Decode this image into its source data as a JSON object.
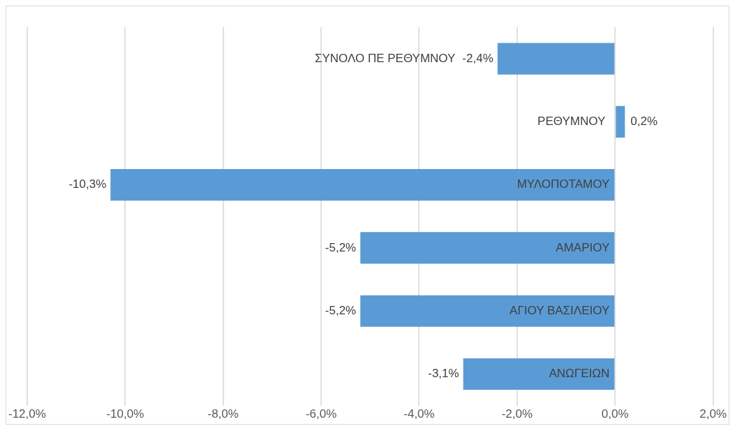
{
  "chart_data": {
    "type": "bar",
    "orientation": "horizontal",
    "categories": [
      "ΣΥΝΟΛΟ ΠΕ ΡΕΘΥΜΝΟΥ",
      "ΡΕΘΥΜΝΟΥ",
      "ΜΥΛΟΠΟΤΑΜΟΥ",
      "ΑΜΑΡΙΟΥ",
      "ΑΓΙΟΥ ΒΑΣΙΛΕΙΟΥ",
      "ΑΝΩΓΕΙΩΝ"
    ],
    "values": [
      -2.4,
      0.2,
      -10.3,
      -5.2,
      -5.2,
      -3.1
    ],
    "value_labels": [
      "-2,4%",
      "0,2%",
      "-10,3%",
      "-5,2%",
      "-5,2%",
      "-3,1%"
    ],
    "color": "#5b9bd5",
    "xlim": [
      -12,
      2
    ],
    "xticks": [
      {
        "value": -12,
        "label": "-12,0%"
      },
      {
        "value": -10,
        "label": "-10,0%"
      },
      {
        "value": -8,
        "label": "-8,0%"
      },
      {
        "value": -6,
        "label": "-6,0%"
      },
      {
        "value": -4,
        "label": "-4,0%"
      },
      {
        "value": -2,
        "label": "-2,0%"
      },
      {
        "value": 0,
        "label": "0,0%"
      },
      {
        "value": 2,
        "label": "2,0%"
      }
    ],
    "grid": "x",
    "legend": false
  }
}
